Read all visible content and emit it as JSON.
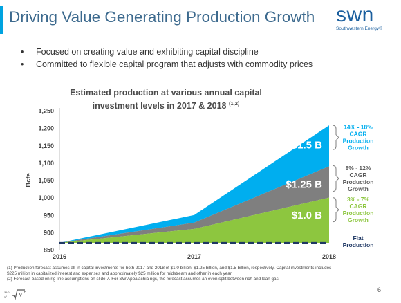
{
  "header": {
    "title": "Driving Value Generating Production Growth",
    "logo_word": "swn",
    "logo_sub": "Southwestern Energy",
    "logo_sup": "®"
  },
  "bullets": [
    "Focused on creating value and exhibiting capital discipline",
    "Committed to flexible capital program that adjusts with commodity prices"
  ],
  "bullet_glyph": "•",
  "chart_data": {
    "type": "area",
    "title_line1": "Estimated production at various annual capital",
    "title_line2": "investment levels in 2017 & 2018",
    "title_superscript": "(1,2)",
    "ylabel": "Bcfe",
    "ylim": [
      850,
      1250
    ],
    "yticks": [
      "850",
      "900",
      "950",
      "1,000",
      "1,050",
      "1,100",
      "1,150",
      "1,200",
      "1,250"
    ],
    "x": [
      "2016",
      "2017",
      "2018"
    ],
    "series": [
      {
        "name": "$1.5 B",
        "color": "#00aeef",
        "values": [
          870,
          950,
          1208
        ]
      },
      {
        "name": "$1.25 B",
        "color": "#7f7f7f",
        "values": [
          870,
          928,
          1090
        ]
      },
      {
        "name": "$1.0 B",
        "color": "#8dc63f",
        "values": [
          870,
          910,
          1000
        ]
      }
    ],
    "flat_line": {
      "value": 870,
      "color": "#1f3864"
    },
    "annotations": [
      {
        "lines": [
          "14% - 18%",
          "CAGR",
          "Production",
          "Growth"
        ],
        "color": "#00aeef"
      },
      {
        "lines": [
          "8% - 12%",
          "CAGR",
          "Production",
          "Growth"
        ],
        "color": "#595959"
      },
      {
        "lines": [
          "3% - 7%",
          "CAGR",
          "Production",
          "Growth"
        ],
        "color": "#8dc63f"
      },
      {
        "lines": [
          "Flat",
          "Production"
        ],
        "color": "#1f3864"
      }
    ]
  },
  "footnotes": [
    "(1)   Production forecast assumes all-in capital investments for both 2017 and 2018 of $1.0 billion, $1.25 billion, and $1.5 billion, respectively. Capital investments includes $225 million in capitalized interest and expenses and approximately $25 million for midstream and other in each year.",
    "(2)   Forecast based on rig line assumptions on slide 7. For SW Appalachia rigs, the forecast assumes an even split between rich and lean gas."
  ],
  "page_number": "6"
}
